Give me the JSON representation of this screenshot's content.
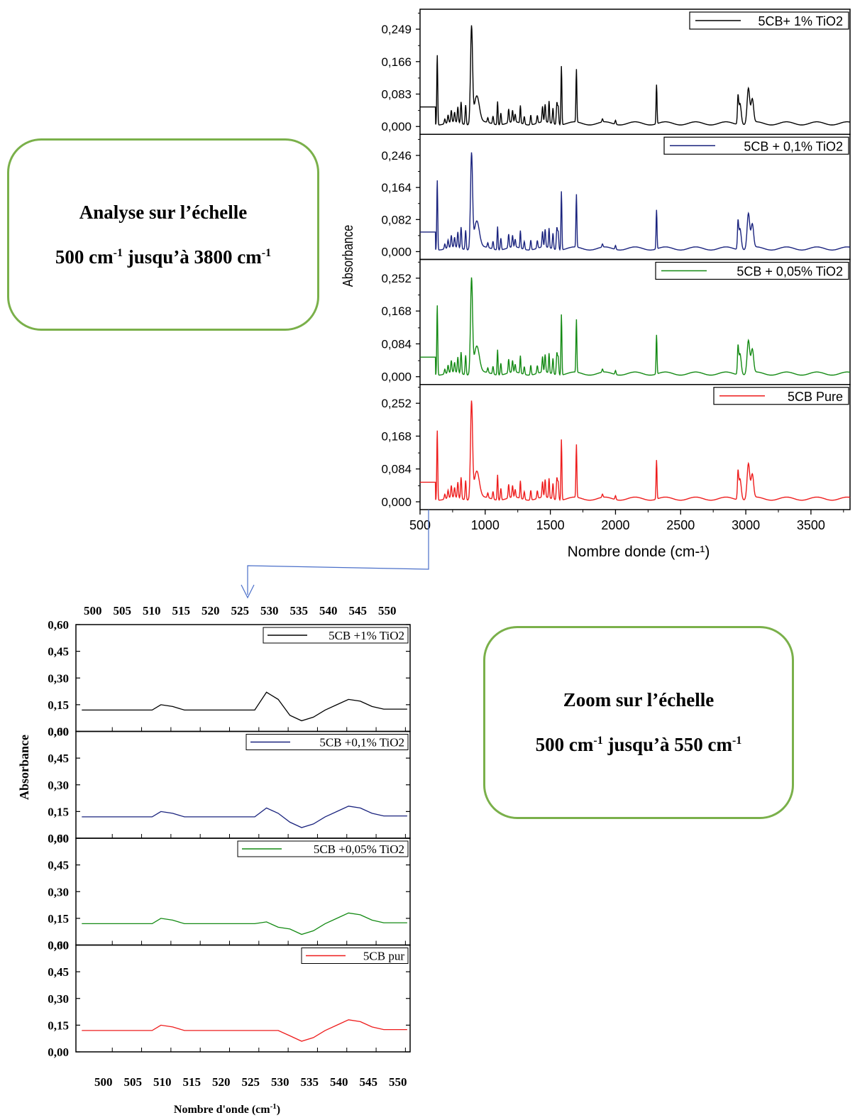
{
  "callouts": {
    "top": {
      "title": "Analyse sur l’échelle",
      "from": "500 cm",
      "from_sup": "-1",
      "mid": " jusqu’à 3800 cm",
      "to_sup": "-1"
    },
    "bottom": {
      "title": "Zoom sur l’échelle",
      "from": "500 cm",
      "from_sup": "-1",
      "mid": " jusqu’à 550 cm",
      "to_sup": "-1"
    }
  },
  "chart_data": [
    {
      "type": "line",
      "layout": "stacked-panels",
      "xlabel": "Nombre donde (cm-¹)",
      "ylabel": "Absorbance",
      "xlim": [
        500,
        3800
      ],
      "x_ticks": [
        "500",
        "1000",
        "1500",
        "2000",
        "2500",
        "3000",
        "3500"
      ],
      "legend_placement": "top-right",
      "peaks_cm1": [
        632,
        895,
        1095,
        1270,
        1490,
        1585,
        1700,
        2315,
        2955,
        3020,
        3050
      ],
      "panels": [
        {
          "name": "5CB+ 1% TiO2",
          "color": "#000000",
          "y_ticks": [
            "0,000",
            "0,083",
            "0,166",
            "0,249"
          ],
          "ylim": [
            -0.02,
            0.3
          ],
          "peak_heights": [
            0.18,
            0.245,
            0.06,
            0.045,
            0.055,
            0.15,
            0.135,
            0.1,
            0.055,
            0.09,
            0.06
          ]
        },
        {
          "name": "5CB + 0,1% TiO2",
          "color": "#1a237e",
          "y_ticks": [
            "0,000",
            "0,082",
            "0,164",
            "0,246"
          ],
          "ylim": [
            -0.02,
            0.3
          ],
          "peak_heights": [
            0.18,
            0.24,
            0.06,
            0.045,
            0.05,
            0.15,
            0.135,
            0.1,
            0.055,
            0.09,
            0.06
          ]
        },
        {
          "name": "5CB + 0,05% TiO2",
          "color": "#138a13",
          "y_ticks": [
            "0,000",
            "0,084",
            "0,168",
            "0,252"
          ],
          "ylim": [
            -0.02,
            0.3
          ],
          "peak_heights": [
            0.18,
            0.24,
            0.065,
            0.045,
            0.05,
            0.155,
            0.135,
            0.1,
            0.055,
            0.085,
            0.06
          ]
        },
        {
          "name": "5CB Pure",
          "color": "#ee1c1c",
          "y_ticks": [
            "0,000",
            "0,084",
            "0,168",
            "0,252"
          ],
          "ylim": [
            -0.02,
            0.3
          ],
          "peak_heights": [
            0.18,
            0.245,
            0.065,
            0.045,
            0.05,
            0.155,
            0.135,
            0.1,
            0.055,
            0.09,
            0.06
          ]
        }
      ]
    },
    {
      "type": "line",
      "layout": "stacked-panels",
      "xlabel": "Nombre d'onde (cm",
      "xlabel_sup": "-1",
      "xlabel_close": ")",
      "ylabel": "Absorbance",
      "xlim": [
        496,
        553
      ],
      "x_ticks": [
        "500",
        "505",
        "510",
        "515",
        "520",
        "525",
        "530",
        "535",
        "540",
        "545",
        "550"
      ],
      "y_ticks": [
        "0,00",
        "0,15",
        "0,30",
        "0,45",
        "0,60"
      ],
      "ylim": [
        0.0,
        0.6
      ],
      "legend_placement": "top-right",
      "x": [
        497,
        499,
        501,
        503,
        505,
        507,
        509,
        510.5,
        512.5,
        514.5,
        516.5,
        518.5,
        520.5,
        522.5,
        524.5,
        526.5,
        528.5,
        530.5,
        532.5,
        534.5,
        536.5,
        538.5,
        540.5,
        542.5,
        544.5,
        546.5,
        548.5,
        550.5,
        552.5
      ],
      "panels": [
        {
          "name": "5CB +1% TiO2",
          "color": "#000000",
          "values": [
            0.12,
            0.12,
            0.12,
            0.12,
            0.12,
            0.12,
            0.12,
            0.15,
            0.14,
            0.12,
            0.12,
            0.12,
            0.12,
            0.12,
            0.12,
            0.12,
            0.22,
            0.18,
            0.09,
            0.06,
            0.08,
            0.12,
            0.15,
            0.18,
            0.17,
            0.14,
            0.125,
            0.125,
            0.125
          ]
        },
        {
          "name": "5CB +0,1% TiO2",
          "color": "#1a237e",
          "values": [
            0.12,
            0.12,
            0.12,
            0.12,
            0.12,
            0.12,
            0.12,
            0.15,
            0.14,
            0.12,
            0.12,
            0.12,
            0.12,
            0.12,
            0.12,
            0.12,
            0.17,
            0.14,
            0.09,
            0.06,
            0.08,
            0.12,
            0.15,
            0.18,
            0.17,
            0.14,
            0.125,
            0.125,
            0.125
          ]
        },
        {
          "name": "5CB +0,05% TiO2",
          "color": "#138a13",
          "values": [
            0.12,
            0.12,
            0.12,
            0.12,
            0.12,
            0.12,
            0.12,
            0.15,
            0.14,
            0.12,
            0.12,
            0.12,
            0.12,
            0.12,
            0.12,
            0.12,
            0.13,
            0.1,
            0.09,
            0.06,
            0.08,
            0.12,
            0.15,
            0.18,
            0.17,
            0.14,
            0.125,
            0.125,
            0.125
          ]
        },
        {
          "name": "5CB pur",
          "color": "#ee1c1c",
          "values": [
            0.12,
            0.12,
            0.12,
            0.12,
            0.12,
            0.12,
            0.12,
            0.15,
            0.14,
            0.12,
            0.12,
            0.12,
            0.12,
            0.12,
            0.12,
            0.12,
            0.12,
            0.12,
            0.09,
            0.06,
            0.08,
            0.12,
            0.15,
            0.18,
            0.17,
            0.14,
            0.125,
            0.125,
            0.125
          ]
        }
      ]
    }
  ]
}
